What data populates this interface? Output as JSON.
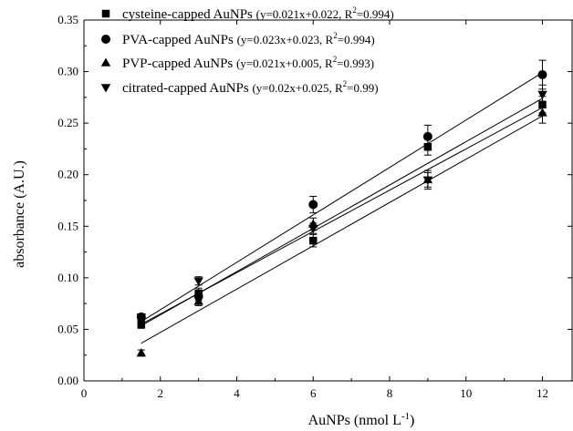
{
  "chart_data": {
    "type": "scatter",
    "xlabel": "AuNPs (nmol L",
    "xlabel_sup": "-1",
    "xlabel_suffix": ")",
    "ylabel": "absorbance (A.U.)",
    "xlim": [
      0,
      12.8
    ],
    "ylim": [
      0,
      0.35
    ],
    "xticks": [
      0,
      2,
      4,
      6,
      8,
      10,
      12
    ],
    "xtick_labels": [
      "0",
      "2",
      "4",
      "6",
      "8",
      "10",
      "12"
    ],
    "yticks": [
      0,
      0.05,
      0.1,
      0.15,
      0.2,
      0.25,
      0.3,
      0.35
    ],
    "ytick_labels": [
      "0.00",
      "0.05",
      "0.10",
      "0.15",
      "0.20",
      "0.25",
      "0.30",
      "0.35"
    ],
    "legend_position": "top-left",
    "grid": false,
    "series": [
      {
        "name": "cysteine-capped AuNPs",
        "equation": "(y=0.021x+0.022, R",
        "r2": "=0.994)",
        "marker": "square",
        "x": [
          1.5,
          3,
          6,
          9,
          12
        ],
        "y": [
          0.055,
          0.085,
          0.136,
          0.227,
          0.268
        ],
        "err": [
          0.004,
          0.005,
          0.006,
          0.008,
          0.008
        ],
        "fit": {
          "slope": 0.021,
          "intercept": 0.022
        }
      },
      {
        "name": "PVA-capped AuNPs",
        "equation": "(y=0.023x+0.023, R",
        "r2": "=0.994)",
        "marker": "circle",
        "x": [
          1.5,
          3,
          6,
          9,
          12
        ],
        "y": [
          0.062,
          0.082,
          0.171,
          0.237,
          0.297
        ],
        "err": [
          0.003,
          0.004,
          0.008,
          0.011,
          0.014
        ],
        "fit": {
          "slope": 0.023,
          "intercept": 0.023
        }
      },
      {
        "name": "PVP-capped AuNPs",
        "equation": "(y=0.021x+0.005, R",
        "r2": "=0.993)",
        "marker": "triangle-up",
        "x": [
          1.5,
          3,
          6,
          9,
          12
        ],
        "y": [
          0.027,
          0.077,
          0.152,
          0.195,
          0.26
        ],
        "err": [
          0.003,
          0.004,
          0.006,
          0.009,
          0.01
        ],
        "fit": {
          "slope": 0.021,
          "intercept": 0.005
        }
      },
      {
        "name": "citrated-capped AuNPs",
        "equation": "(y=0.02x+0.025, R",
        "r2": "=0.99)",
        "marker": "triangle-down",
        "x": [
          1.5,
          3,
          6,
          9,
          12
        ],
        "y": [
          0.062,
          0.097,
          0.148,
          0.195,
          0.278
        ],
        "err": [
          0.003,
          0.004,
          0.005,
          0.007,
          0.009
        ],
        "fit": {
          "slope": 0.02,
          "intercept": 0.025
        }
      }
    ]
  }
}
